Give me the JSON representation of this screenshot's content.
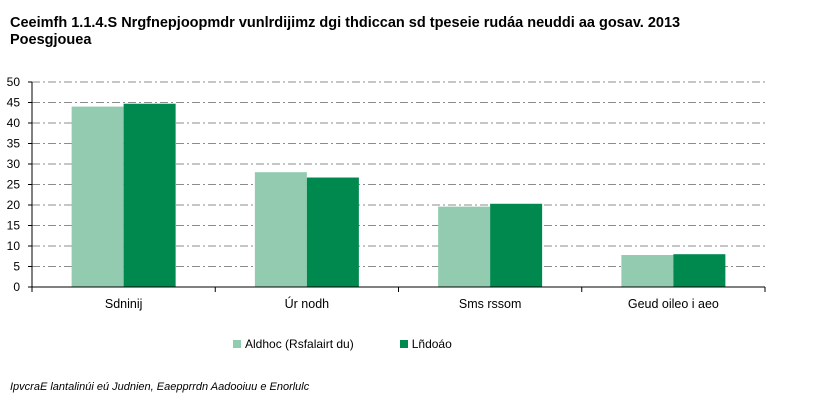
{
  "title_line1": "Ceeimfh 1.1.4.S Nrgfnepjoopmdr vunlrdijimz dgi thdiccan sd tpeseie rudáa neuddi aa gosav. 2013",
  "title_line2": "Poesgjouea",
  "source": "IpvcraE lantalinúi eú Judnien, Eaepprrdn Aadooiuu e Enorlulc",
  "colors": {
    "series1": "#93cbb1",
    "series2": "#00894f",
    "grid": "#8c8c8c"
  },
  "chart_data": {
    "type": "bar",
    "categories": [
      "Sdninij",
      "Úr nodh",
      "Sms rssom",
      "Geud oileo i aeo"
    ],
    "series": [
      {
        "name": "Aldhoc (Rsfalairt du)",
        "values": [
          44.0,
          28.0,
          19.6,
          7.8
        ]
      },
      {
        "name": "Lñdoáo",
        "values": [
          44.7,
          26.7,
          20.3,
          8.0
        ]
      }
    ],
    "ylim": [
      0,
      50
    ],
    "yticks": [
      0,
      5,
      10,
      15,
      20,
      25,
      30,
      35,
      40,
      45,
      50
    ],
    "grid": true,
    "legend_position": "bottom"
  }
}
